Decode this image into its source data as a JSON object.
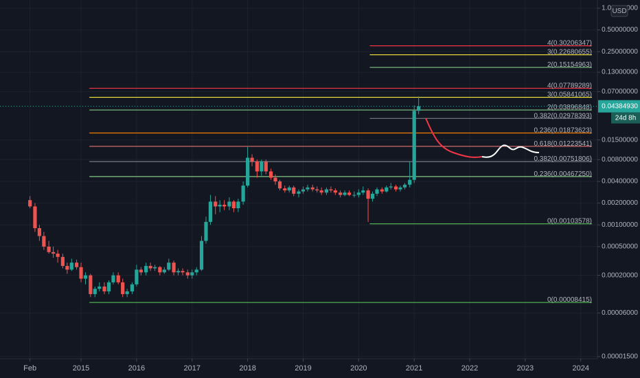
{
  "chart_data": {
    "type": "candlestick",
    "currency": "USD",
    "log_scale": true,
    "grid": true,
    "xlim": [
      2013.54,
      2024.3
    ],
    "ylim": [
      1.4e-05,
      1.3
    ],
    "xticks": [
      {
        "value": 2014.08,
        "label": "Feb"
      },
      2015,
      2016,
      2017,
      2018,
      2019,
      2020,
      2021,
      2022,
      2023,
      2024
    ],
    "yticks": [
      {
        "value": 1,
        "label": "1.00000000"
      },
      {
        "value": 0.5,
        "label": "0.50000000"
      },
      {
        "value": 0.25,
        "label": "0.25000000"
      },
      {
        "value": 0.13,
        "label": "0.13000000"
      },
      {
        "value": 0.07,
        "label": "0.07000000"
      },
      {
        "value": 0.015,
        "label": "0.01500000"
      },
      {
        "value": 0.008,
        "label": "0.00800000"
      },
      {
        "value": 0.004,
        "label": "0.00400000"
      },
      {
        "value": 0.002,
        "label": "0.00200000"
      },
      {
        "value": 0.001,
        "label": "0.00100000"
      },
      {
        "value": 0.0005,
        "label": "0.00050000"
      },
      {
        "value": 0.0002,
        "label": "0.00020000"
      },
      {
        "value": 6e-05,
        "label": "0.00006000"
      },
      {
        "value": 1.5e-05,
        "label": "0.00001500"
      }
    ],
    "candles": {
      "up_color": "#26a69a",
      "down_color": "#ef5350",
      "x": [
        2014.08,
        2014.17,
        2014.25,
        2014.33,
        2014.42,
        2014.5,
        2014.58,
        2014.67,
        2014.75,
        2014.83,
        2014.92,
        2015.0,
        2015.08,
        2015.17,
        2015.25,
        2015.33,
        2015.42,
        2015.5,
        2015.58,
        2015.67,
        2015.75,
        2015.83,
        2015.92,
        2016.0,
        2016.08,
        2016.17,
        2016.25,
        2016.33,
        2016.42,
        2016.5,
        2016.58,
        2016.67,
        2016.75,
        2016.83,
        2016.92,
        2017.0,
        2017.08,
        2017.17,
        2017.25,
        2017.33,
        2017.42,
        2017.5,
        2017.58,
        2017.67,
        2017.75,
        2017.83,
        2017.92,
        2018.0,
        2018.08,
        2018.17,
        2018.25,
        2018.33,
        2018.42,
        2018.5,
        2018.58,
        2018.67,
        2018.75,
        2018.83,
        2018.92,
        2019.0,
        2019.08,
        2019.17,
        2019.25,
        2019.33,
        2019.42,
        2019.5,
        2019.58,
        2019.67,
        2019.75,
        2019.83,
        2019.92,
        2020.0,
        2020.08,
        2020.17,
        2020.25,
        2020.33,
        2020.42,
        2020.5,
        2020.58,
        2020.67,
        2020.75,
        2020.83,
        2020.92,
        2021.0,
        2021.08
      ],
      "open": [
        0.0022,
        0.0018,
        0.0009,
        0.0007,
        0.0005,
        0.00042,
        0.0004,
        0.00036,
        0.00027,
        0.00024,
        0.0003,
        0.00026,
        0.00018,
        0.0002,
        0.00011,
        0.00013,
        0.00014,
        0.00012,
        0.00016,
        0.0002,
        0.00016,
        0.00011,
        0.00012,
        0.00015,
        0.00024,
        0.00022,
        0.00027,
        0.00025,
        0.00026,
        0.00022,
        0.00024,
        0.0003,
        0.00022,
        0.00023,
        0.00022,
        0.0002,
        0.00022,
        0.00024,
        0.0006,
        0.0011,
        0.0021,
        0.0018,
        0.0019,
        0.0018,
        0.0021,
        0.0017,
        0.0021,
        0.0035,
        0.0085,
        0.0075,
        0.0055,
        0.0075,
        0.0055,
        0.0045,
        0.004,
        0.0032,
        0.003,
        0.0033,
        0.0027,
        0.0029,
        0.0031,
        0.0033,
        0.0031,
        0.003,
        0.0028,
        0.0031,
        0.003,
        0.0028,
        0.0026,
        0.0028,
        0.0026,
        0.0026,
        0.0028,
        0.003,
        0.0023,
        0.0027,
        0.0031,
        0.0029,
        0.0033,
        0.0034,
        0.0031,
        0.0033,
        0.0036,
        0.0042,
        0.038
      ],
      "high": [
        0.0025,
        0.002,
        0.001,
        0.0008,
        0.0006,
        0.0005,
        0.00045,
        0.0004,
        0.0003,
        0.00034,
        0.00033,
        0.0003,
        0.00022,
        0.00021,
        0.00014,
        0.00016,
        0.00016,
        0.00017,
        0.00022,
        0.00022,
        0.00018,
        0.00013,
        0.00016,
        0.00028,
        0.00026,
        0.0003,
        0.0003,
        0.00028,
        0.00027,
        0.00026,
        0.00034,
        0.00032,
        0.00025,
        0.00025,
        0.00024,
        0.00024,
        0.00026,
        0.0007,
        0.0013,
        0.0026,
        0.0025,
        0.0022,
        0.0022,
        0.0024,
        0.0022,
        0.0023,
        0.004,
        0.012,
        0.0095,
        0.008,
        0.008,
        0.008,
        0.006,
        0.005,
        0.0042,
        0.0035,
        0.0035,
        0.0035,
        0.0031,
        0.0034,
        0.0036,
        0.0036,
        0.0034,
        0.0033,
        0.0033,
        0.0034,
        0.0032,
        0.003,
        0.003,
        0.003,
        0.0029,
        0.0031,
        0.0034,
        0.0032,
        0.0029,
        0.0033,
        0.0033,
        0.0035,
        0.0038,
        0.0036,
        0.0035,
        0.0038,
        0.0075,
        0.045,
        0.06
      ],
      "low": [
        0.0017,
        0.0008,
        0.0006,
        0.00045,
        0.0004,
        0.00035,
        0.0003,
        0.00025,
        0.00021,
        0.00023,
        0.00024,
        0.00016,
        0.00015,
        0.0001,
        0.0001,
        0.00012,
        0.00011,
        0.00011,
        0.00015,
        0.00015,
        0.0001,
        0.0001,
        0.00011,
        0.00014,
        0.0002,
        0.0002,
        0.00023,
        0.00023,
        0.0002,
        0.00021,
        0.00023,
        0.0002,
        0.0002,
        0.0002,
        0.00018,
        0.00018,
        0.0002,
        0.00023,
        0.00055,
        0.001,
        0.0014,
        0.0015,
        0.0016,
        0.0016,
        0.0015,
        0.0015,
        0.0019,
        0.0033,
        0.0065,
        0.0045,
        0.0048,
        0.005,
        0.0042,
        0.0036,
        0.003,
        0.0028,
        0.0028,
        0.0025,
        0.0024,
        0.0027,
        0.0029,
        0.0029,
        0.0028,
        0.0026,
        0.0026,
        0.0028,
        0.0026,
        0.0024,
        0.0025,
        0.0025,
        0.0024,
        0.0024,
        0.0026,
        0.0011,
        0.0021,
        0.0025,
        0.0027,
        0.0028,
        0.0031,
        0.0029,
        0.0029,
        0.0031,
        0.0033,
        0.0038,
        0.034
      ],
      "close": [
        0.0018,
        0.0009,
        0.0007,
        0.0005,
        0.00042,
        0.0004,
        0.00036,
        0.00027,
        0.00024,
        0.0003,
        0.00026,
        0.00018,
        0.0002,
        0.00011,
        0.00013,
        0.00014,
        0.00012,
        0.00016,
        0.0002,
        0.00016,
        0.00011,
        0.00012,
        0.00015,
        0.00024,
        0.00022,
        0.00027,
        0.00025,
        0.00026,
        0.00022,
        0.00024,
        0.0003,
        0.00022,
        0.00023,
        0.00022,
        0.0002,
        0.00022,
        0.00024,
        0.0006,
        0.0011,
        0.0021,
        0.0018,
        0.0019,
        0.0018,
        0.0021,
        0.0017,
        0.0021,
        0.0035,
        0.0085,
        0.0075,
        0.0055,
        0.0075,
        0.0055,
        0.0045,
        0.004,
        0.0032,
        0.003,
        0.0033,
        0.0027,
        0.0029,
        0.0031,
        0.0033,
        0.0031,
        0.003,
        0.0028,
        0.0031,
        0.003,
        0.0028,
        0.0026,
        0.0028,
        0.0026,
        0.0026,
        0.0028,
        0.003,
        0.0023,
        0.0027,
        0.0031,
        0.0029,
        0.0033,
        0.0034,
        0.0031,
        0.0033,
        0.0036,
        0.0042,
        0.038,
        0.04385
      ]
    },
    "levels": [
      {
        "label": "4(0.30206347)",
        "value": 0.30206347,
        "color": "#f23645",
        "start": 2020.2
      },
      {
        "label": "3(0.22680655)",
        "value": 0.22680655,
        "color": "#ffeb3b",
        "start": 2020.2
      },
      {
        "label": "2(0.15154963)",
        "value": 0.15154963,
        "color": "#81c784",
        "start": 2020.2
      },
      {
        "label": "4(0.07789289)",
        "value": 0.07789289,
        "color": "#f23645",
        "start": 2015.15
      },
      {
        "label": "3(0.05841065)",
        "value": 0.05841065,
        "color": "#ffeb3b",
        "start": 2015.15
      },
      {
        "label": "2(0.03896848)",
        "value": 0.03896848,
        "color": "#81c784",
        "start": 2015.15
      },
      {
        "label": "0.382(0.02978393)",
        "value": 0.02978393,
        "color": "#787b86",
        "start": 2020.2
      },
      {
        "label": "0.236(0.01873623)",
        "value": 0.01873623,
        "color": "#f57c00",
        "start": 2015.15
      },
      {
        "label": "0.618(0.01223541)",
        "value": 0.01223541,
        "color": "#e57373",
        "start": 2015.15
      },
      {
        "label": "0.382(0.00751806)",
        "value": 0.00751806,
        "color": "#787b86",
        "start": 2015.15
      },
      {
        "label": "0.236(0.00467250)",
        "value": 0.0046725,
        "color": "#81c784",
        "start": 2015.15
      },
      {
        "label": "0(0.00103578)",
        "value": 0.00103578,
        "color": "#4caf50",
        "start": 2020.2
      },
      {
        "label": "0(0.00008415)",
        "value": 8.415e-05,
        "color": "#4caf50",
        "start": 2015.15
      }
    ],
    "current_price": {
      "value": 0.0438493,
      "label": "0.04384930"
    },
    "countdown": "24d 8h"
  }
}
